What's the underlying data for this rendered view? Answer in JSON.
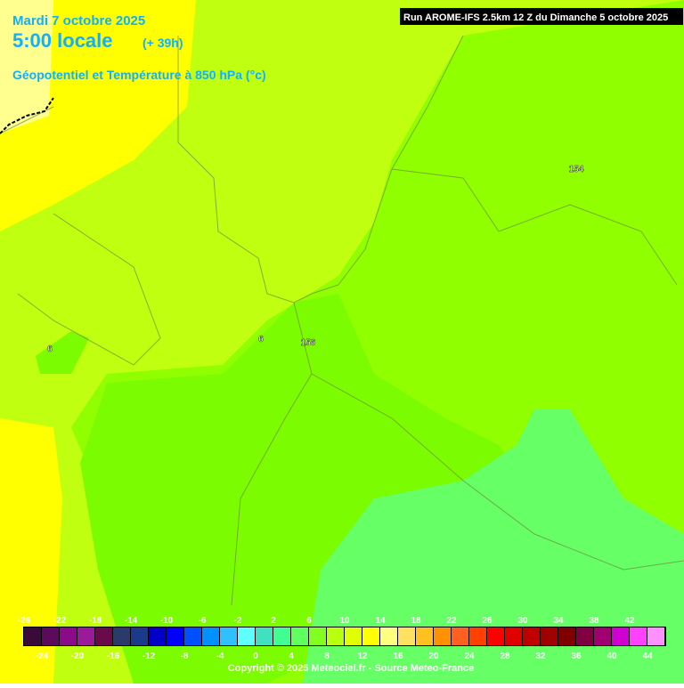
{
  "header": {
    "date": "Mardi 7 octobre 2025",
    "time": "5:00 locale",
    "lead": "(+ 39h)",
    "field": "Géopotentiel et Température à 850 hPa (°c)",
    "run": "Run AROME-IFS 2.5km 12 Z du Dimanche 5 octobre 2025"
  },
  "map_labels": [
    "154",
    "156",
    "6",
    "6"
  ],
  "colorbar": {
    "ticks": [
      -26,
      -24,
      -22,
      -20,
      -18,
      -16,
      -14,
      -12,
      -10,
      -8,
      -6,
      -4,
      -2,
      0,
      2,
      4,
      6,
      8,
      10,
      12,
      14,
      16,
      18,
      20,
      22,
      24,
      26,
      28,
      30,
      32,
      34,
      36,
      38,
      40,
      42,
      44
    ],
    "colors": [
      "#3a0a3a",
      "#5c0a5c",
      "#8a0a8a",
      "#9a1a9a",
      "#6a0a4a",
      "#2a3a6a",
      "#1a3a8a",
      "#0000c8",
      "#0000ff",
      "#0050ff",
      "#0090ff",
      "#30c0ff",
      "#60ffff",
      "#40e0c0",
      "#40ff90",
      "#60ff60",
      "#80ff20",
      "#b8ff10",
      "#e0ff00",
      "#ffff00",
      "#ffff80",
      "#ffe060",
      "#ffc020",
      "#ff9000",
      "#ff6020",
      "#ff4000",
      "#ff0000",
      "#e00000",
      "#c00000",
      "#a00000",
      "#800000",
      "#800040",
      "#a00070",
      "#d000d0",
      "#ff40ff",
      "#ff90ff"
    ]
  },
  "footer": "Copyright © 2025 Meteociel.fr - Source Meteo-France"
}
